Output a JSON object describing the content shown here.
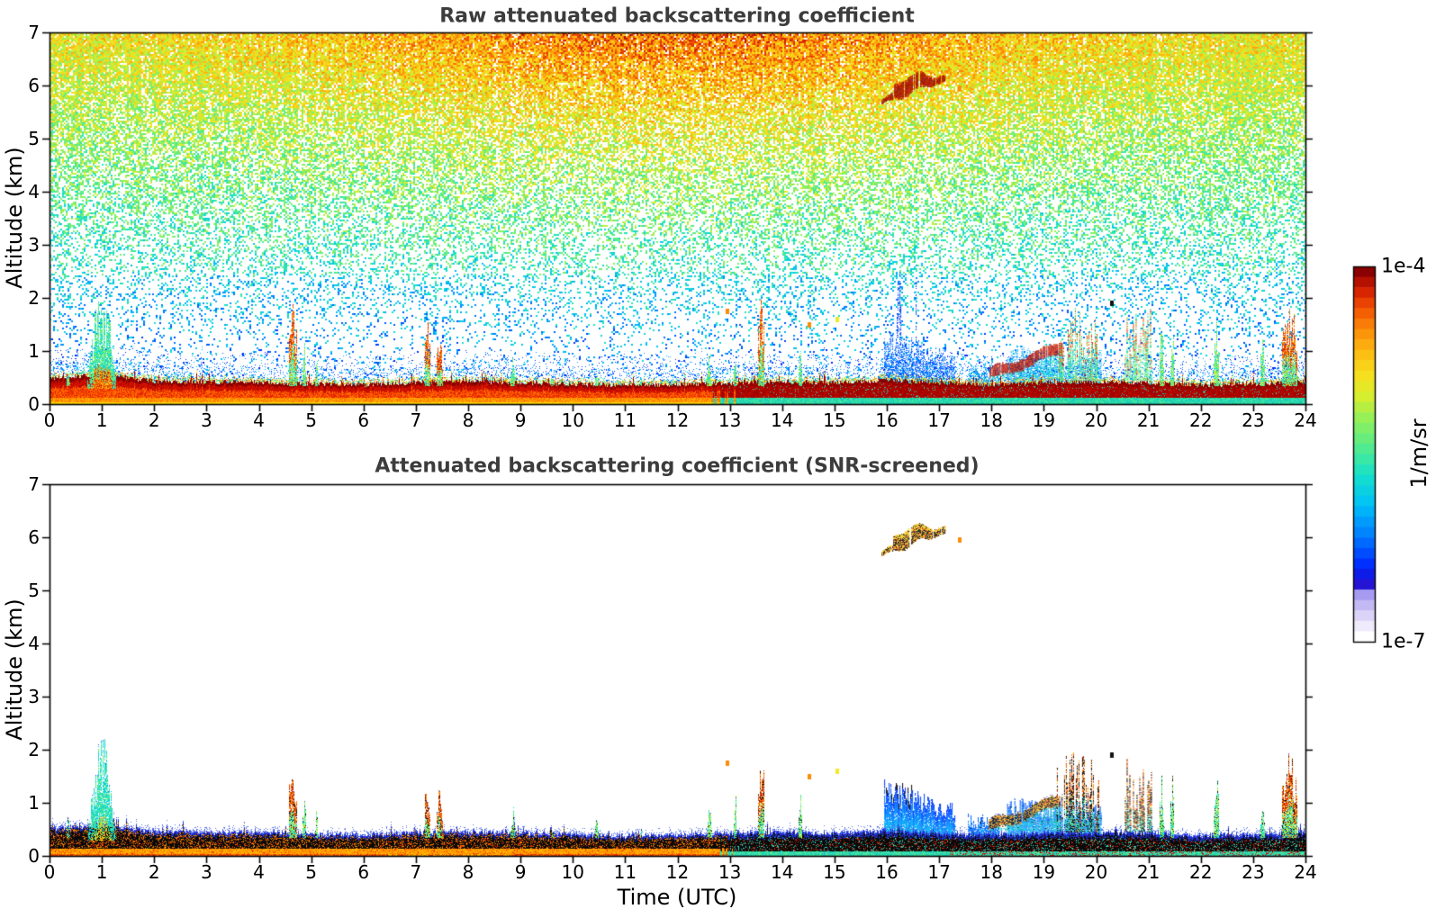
{
  "figure": {
    "background": "#ffffff",
    "title_color": "#3c3c3c",
    "axis_color": "#000000"
  },
  "axes": {
    "x_label": "Time (UTC)",
    "y_label": "Altitude (km)",
    "x_ticks": [
      0,
      1,
      2,
      3,
      4,
      5,
      6,
      7,
      8,
      9,
      10,
      11,
      12,
      13,
      14,
      15,
      16,
      17,
      18,
      19,
      20,
      21,
      22,
      23,
      24
    ],
    "y_ticks": [
      0,
      1,
      2,
      3,
      4,
      5,
      6,
      7
    ],
    "x_range": [
      0,
      24
    ],
    "y_range": [
      0,
      7
    ]
  },
  "colorbar": {
    "max_label": "1e-4",
    "min_label": "1e-7",
    "unit": "1/m/sr",
    "steps": 36,
    "colormap": [
      [
        0.0,
        "#ffffff"
      ],
      [
        0.035,
        "#ece7fb"
      ],
      [
        0.075,
        "#cfc5f6"
      ],
      [
        0.115,
        "#a49af0"
      ],
      [
        0.145,
        "#1b0ad2"
      ],
      [
        0.2,
        "#0030ff"
      ],
      [
        0.28,
        "#0080ff"
      ],
      [
        0.36,
        "#00c0f8"
      ],
      [
        0.44,
        "#14e0cc"
      ],
      [
        0.52,
        "#55ec8c"
      ],
      [
        0.6,
        "#97f055"
      ],
      [
        0.66,
        "#d9ee2e"
      ],
      [
        0.72,
        "#f8df1e"
      ],
      [
        0.78,
        "#fdbb12"
      ],
      [
        0.84,
        "#fb8d09"
      ],
      [
        0.9,
        "#f25103"
      ],
      [
        0.95,
        "#d21d01"
      ],
      [
        1.0,
        "#8b0000"
      ]
    ]
  },
  "chart_data": [
    {
      "type": "heatmap",
      "title": "Raw attenuated backscattering coefficient",
      "xlabel": "",
      "ylabel": "Altitude (km)",
      "x_range": [
        0,
        24
      ],
      "y_range": [
        0,
        7
      ],
      "value_min": "1e-7",
      "value_max": "1e-4",
      "units": "1/m/sr",
      "description": "Lidar time-height quicklook. Dense range-dependent speckle noise aloft (blue low, green mid, orange-red near 7 km, warmest 05-18 UTC); white below ~1.5 km with sparse blue dots; saturated dark-red aerosol layer 0-0.5 km all day; elevated cloud streak near 6 km at 16-17 UTC; rain/cloud features 16-21 UTC.",
      "noise": {
        "present": true,
        "density_exp": 1.5,
        "base_value": 0.3,
        "alt_gain": 0.4,
        "midday_warm_gain": 0.17,
        "midday_center_hour": 12,
        "midday_sigma_hours": 7,
        "jitter": 0.24
      },
      "surface_layer": {
        "style": "warm-saturated-top-darkred",
        "warm_to_green_hour": 12.9,
        "top_km_profile": [
          [
            0,
            0.5
          ],
          [
            0.8,
            0.55
          ],
          [
            1.0,
            0.62
          ],
          [
            1.4,
            0.52
          ],
          [
            2,
            0.44
          ],
          [
            3,
            0.42
          ],
          [
            4,
            0.43
          ],
          [
            5,
            0.39
          ],
          [
            6,
            0.37
          ],
          [
            7,
            0.42
          ],
          [
            8,
            0.44
          ],
          [
            9,
            0.41
          ],
          [
            10,
            0.39
          ],
          [
            11,
            0.36
          ],
          [
            12,
            0.38
          ],
          [
            13,
            0.41
          ],
          [
            14,
            0.43
          ],
          [
            15,
            0.41
          ],
          [
            16,
            0.46
          ],
          [
            17,
            0.41
          ],
          [
            18,
            0.37
          ],
          [
            19,
            0.41
          ],
          [
            20,
            0.43
          ],
          [
            21,
            0.41
          ],
          [
            22,
            0.37
          ],
          [
            23,
            0.39
          ],
          [
            24,
            0.44
          ]
        ]
      },
      "events": [
        {
          "kind": "plume",
          "t": 1.0,
          "w": 0.55,
          "top": 2.25
        },
        {
          "kind": "spike",
          "t": 0.35,
          "w": 0.06,
          "top": 0.85
        },
        {
          "kind": "spike_hot",
          "t": 4.64,
          "w": 0.14,
          "top": 2.0
        },
        {
          "kind": "spike",
          "t": 4.86,
          "w": 0.06,
          "top": 1.15
        },
        {
          "kind": "spike",
          "t": 5.1,
          "w": 0.05,
          "top": 0.9
        },
        {
          "kind": "spike_hot",
          "t": 7.22,
          "w": 0.1,
          "top": 1.6
        },
        {
          "kind": "spike_hot",
          "t": 7.45,
          "w": 0.12,
          "top": 1.5
        },
        {
          "kind": "spike",
          "t": 8.85,
          "w": 0.08,
          "top": 0.95
        },
        {
          "kind": "spike",
          "t": 9.6,
          "w": 0.05,
          "top": 0.75
        },
        {
          "kind": "spike",
          "t": 10.45,
          "w": 0.06,
          "top": 0.8
        },
        {
          "kind": "spike",
          "t": 11.3,
          "w": 0.05,
          "top": 0.7
        },
        {
          "kind": "spike",
          "t": 12.6,
          "w": 0.09,
          "top": 0.95
        },
        {
          "kind": "spike",
          "t": 13.1,
          "w": 0.05,
          "top": 1.35
        },
        {
          "kind": "spike_hot",
          "t": 13.6,
          "w": 0.12,
          "top": 2.0
        },
        {
          "kind": "spike",
          "t": 14.35,
          "w": 0.06,
          "top": 1.15
        },
        {
          "kind": "dot",
          "t": 14.52,
          "alt": 1.5,
          "color": "#fb8d09"
        },
        {
          "kind": "dot",
          "t": 15.05,
          "alt": 1.6,
          "color": "#f2ea26"
        },
        {
          "kind": "dot",
          "t": 12.95,
          "alt": 1.75,
          "color": "#fb8d09"
        },
        {
          "kind": "cloud_elevated",
          "t0": 15.9,
          "t1": 17.12,
          "alt0": 5.78,
          "alt1": 6.1
        },
        {
          "kind": "dot",
          "t": 17.4,
          "alt": 5.95,
          "color": "#fb8d09"
        },
        {
          "kind": "rain",
          "t0": 15.95,
          "t1": 17.3,
          "top0": 1.25,
          "top1": 0.85
        },
        {
          "kind": "blue_blob",
          "t0": 17.55,
          "t1": 18.15,
          "top": 0.7
        },
        {
          "kind": "arc",
          "t0": 17.95,
          "t1": 19.35,
          "alt0": 0.55,
          "alt1": 1.05
        },
        {
          "kind": "blue_blob",
          "t0": 18.3,
          "t1": 19.35,
          "top": 0.95
        },
        {
          "kind": "broken_spikes",
          "t0": 19.25,
          "t1": 20.05,
          "top": 1.95
        },
        {
          "kind": "blue_blob",
          "t0": 19.4,
          "t1": 20.1,
          "top": 0.9
        },
        {
          "kind": "dot",
          "t": 20.3,
          "alt": 1.9,
          "color": "#111111"
        },
        {
          "kind": "spike_cluster",
          "t0": 20.55,
          "t1": 21.05,
          "top": 1.85
        },
        {
          "kind": "spike",
          "t": 21.25,
          "w": 0.07,
          "top": 1.55
        },
        {
          "kind": "spike",
          "t": 21.45,
          "w": 0.06,
          "top": 1.65
        },
        {
          "kind": "spike",
          "t": 22.3,
          "w": 0.1,
          "top": 1.55
        },
        {
          "kind": "spike",
          "t": 23.18,
          "w": 0.08,
          "top": 1.4
        },
        {
          "kind": "spike_hot",
          "t": 23.7,
          "w": 0.28,
          "top": 2.05
        }
      ]
    },
    {
      "type": "heatmap",
      "title": "Attenuated backscattering coefficient (SNR-screened)",
      "xlabel": "Time (UTC)",
      "ylabel": "Altitude (km)",
      "x_range": [
        0,
        24
      ],
      "y_range": [
        0,
        7
      ],
      "value_min": "1e-7",
      "value_max": "1e-4",
      "units": "1/m/sr",
      "description": "Same scene after SNR screening: white background, aerosol layer 0-0.5 km with red-orange base (green-teal after ~13 UTC), black saturated band topped by a dark-blue edge contour, convective plume at 01 UTC, thin spikes through the day, elevated cloud at 6 km 16-17 UTC (yellow/black), blue precipitation blobs 16-20 UTC, tall spikes 20-24 UTC.",
      "noise": {
        "present": false
      },
      "surface_layer": {
        "style": "black-banded-blue-contour",
        "warm_to_green_hour": 12.9,
        "top_km_profile": [
          [
            0,
            0.5
          ],
          [
            0.8,
            0.55
          ],
          [
            1.0,
            0.62
          ],
          [
            1.4,
            0.52
          ],
          [
            2,
            0.44
          ],
          [
            3,
            0.42
          ],
          [
            4,
            0.43
          ],
          [
            5,
            0.39
          ],
          [
            6,
            0.37
          ],
          [
            7,
            0.42
          ],
          [
            8,
            0.44
          ],
          [
            9,
            0.41
          ],
          [
            10,
            0.39
          ],
          [
            11,
            0.36
          ],
          [
            12,
            0.38
          ],
          [
            13,
            0.41
          ],
          [
            14,
            0.43
          ],
          [
            15,
            0.41
          ],
          [
            16,
            0.46
          ],
          [
            17,
            0.41
          ],
          [
            18,
            0.37
          ],
          [
            19,
            0.41
          ],
          [
            20,
            0.43
          ],
          [
            21,
            0.41
          ],
          [
            22,
            0.37
          ],
          [
            23,
            0.39
          ],
          [
            24,
            0.44
          ]
        ]
      },
      "events": [
        {
          "kind": "plume",
          "t": 1.0,
          "w": 0.55,
          "top": 2.25
        },
        {
          "kind": "spike",
          "t": 0.35,
          "w": 0.06,
          "top": 0.85
        },
        {
          "kind": "spike_hot",
          "t": 4.64,
          "w": 0.14,
          "top": 2.0
        },
        {
          "kind": "spike",
          "t": 4.86,
          "w": 0.06,
          "top": 1.15
        },
        {
          "kind": "spike",
          "t": 5.1,
          "w": 0.05,
          "top": 0.9
        },
        {
          "kind": "spike_hot",
          "t": 7.22,
          "w": 0.1,
          "top": 1.6
        },
        {
          "kind": "spike_hot",
          "t": 7.45,
          "w": 0.12,
          "top": 1.5
        },
        {
          "kind": "spike",
          "t": 8.85,
          "w": 0.08,
          "top": 0.95
        },
        {
          "kind": "spike",
          "t": 9.6,
          "w": 0.05,
          "top": 0.75
        },
        {
          "kind": "spike",
          "t": 10.45,
          "w": 0.06,
          "top": 0.8
        },
        {
          "kind": "spike",
          "t": 11.3,
          "w": 0.05,
          "top": 0.7
        },
        {
          "kind": "spike",
          "t": 12.6,
          "w": 0.09,
          "top": 0.95
        },
        {
          "kind": "spike",
          "t": 13.1,
          "w": 0.05,
          "top": 1.35
        },
        {
          "kind": "spike_hot",
          "t": 13.6,
          "w": 0.12,
          "top": 2.0
        },
        {
          "kind": "spike",
          "t": 14.35,
          "w": 0.06,
          "top": 1.15
        },
        {
          "kind": "dot",
          "t": 14.52,
          "alt": 1.5,
          "color": "#fb8d09"
        },
        {
          "kind": "dot",
          "t": 15.05,
          "alt": 1.6,
          "color": "#f2ea26"
        },
        {
          "kind": "dot",
          "t": 12.95,
          "alt": 1.75,
          "color": "#fb8d09"
        },
        {
          "kind": "cloud_elevated",
          "t0": 15.9,
          "t1": 17.12,
          "alt0": 5.78,
          "alt1": 6.1
        },
        {
          "kind": "dot",
          "t": 17.4,
          "alt": 5.95,
          "color": "#fb8d09"
        },
        {
          "kind": "rain",
          "t0": 15.95,
          "t1": 17.3,
          "top0": 1.25,
          "top1": 0.85
        },
        {
          "kind": "blue_blob",
          "t0": 17.55,
          "t1": 18.15,
          "top": 0.7
        },
        {
          "kind": "arc",
          "t0": 17.95,
          "t1": 19.35,
          "alt0": 0.55,
          "alt1": 1.05
        },
        {
          "kind": "blue_blob",
          "t0": 18.3,
          "t1": 19.35,
          "top": 0.95
        },
        {
          "kind": "broken_spikes",
          "t0": 19.25,
          "t1": 20.05,
          "top": 1.95
        },
        {
          "kind": "blue_blob",
          "t0": 19.4,
          "t1": 20.1,
          "top": 0.9
        },
        {
          "kind": "dot",
          "t": 20.3,
          "alt": 1.9,
          "color": "#111111"
        },
        {
          "kind": "spike_cluster",
          "t0": 20.55,
          "t1": 21.05,
          "top": 1.85
        },
        {
          "kind": "spike",
          "t": 21.25,
          "w": 0.07,
          "top": 1.55
        },
        {
          "kind": "spike",
          "t": 21.45,
          "w": 0.06,
          "top": 1.65
        },
        {
          "kind": "spike",
          "t": 22.3,
          "w": 0.1,
          "top": 1.55
        },
        {
          "kind": "spike",
          "t": 23.18,
          "w": 0.08,
          "top": 1.4
        },
        {
          "kind": "spike_hot",
          "t": 23.7,
          "w": 0.28,
          "top": 2.05
        }
      ]
    }
  ]
}
